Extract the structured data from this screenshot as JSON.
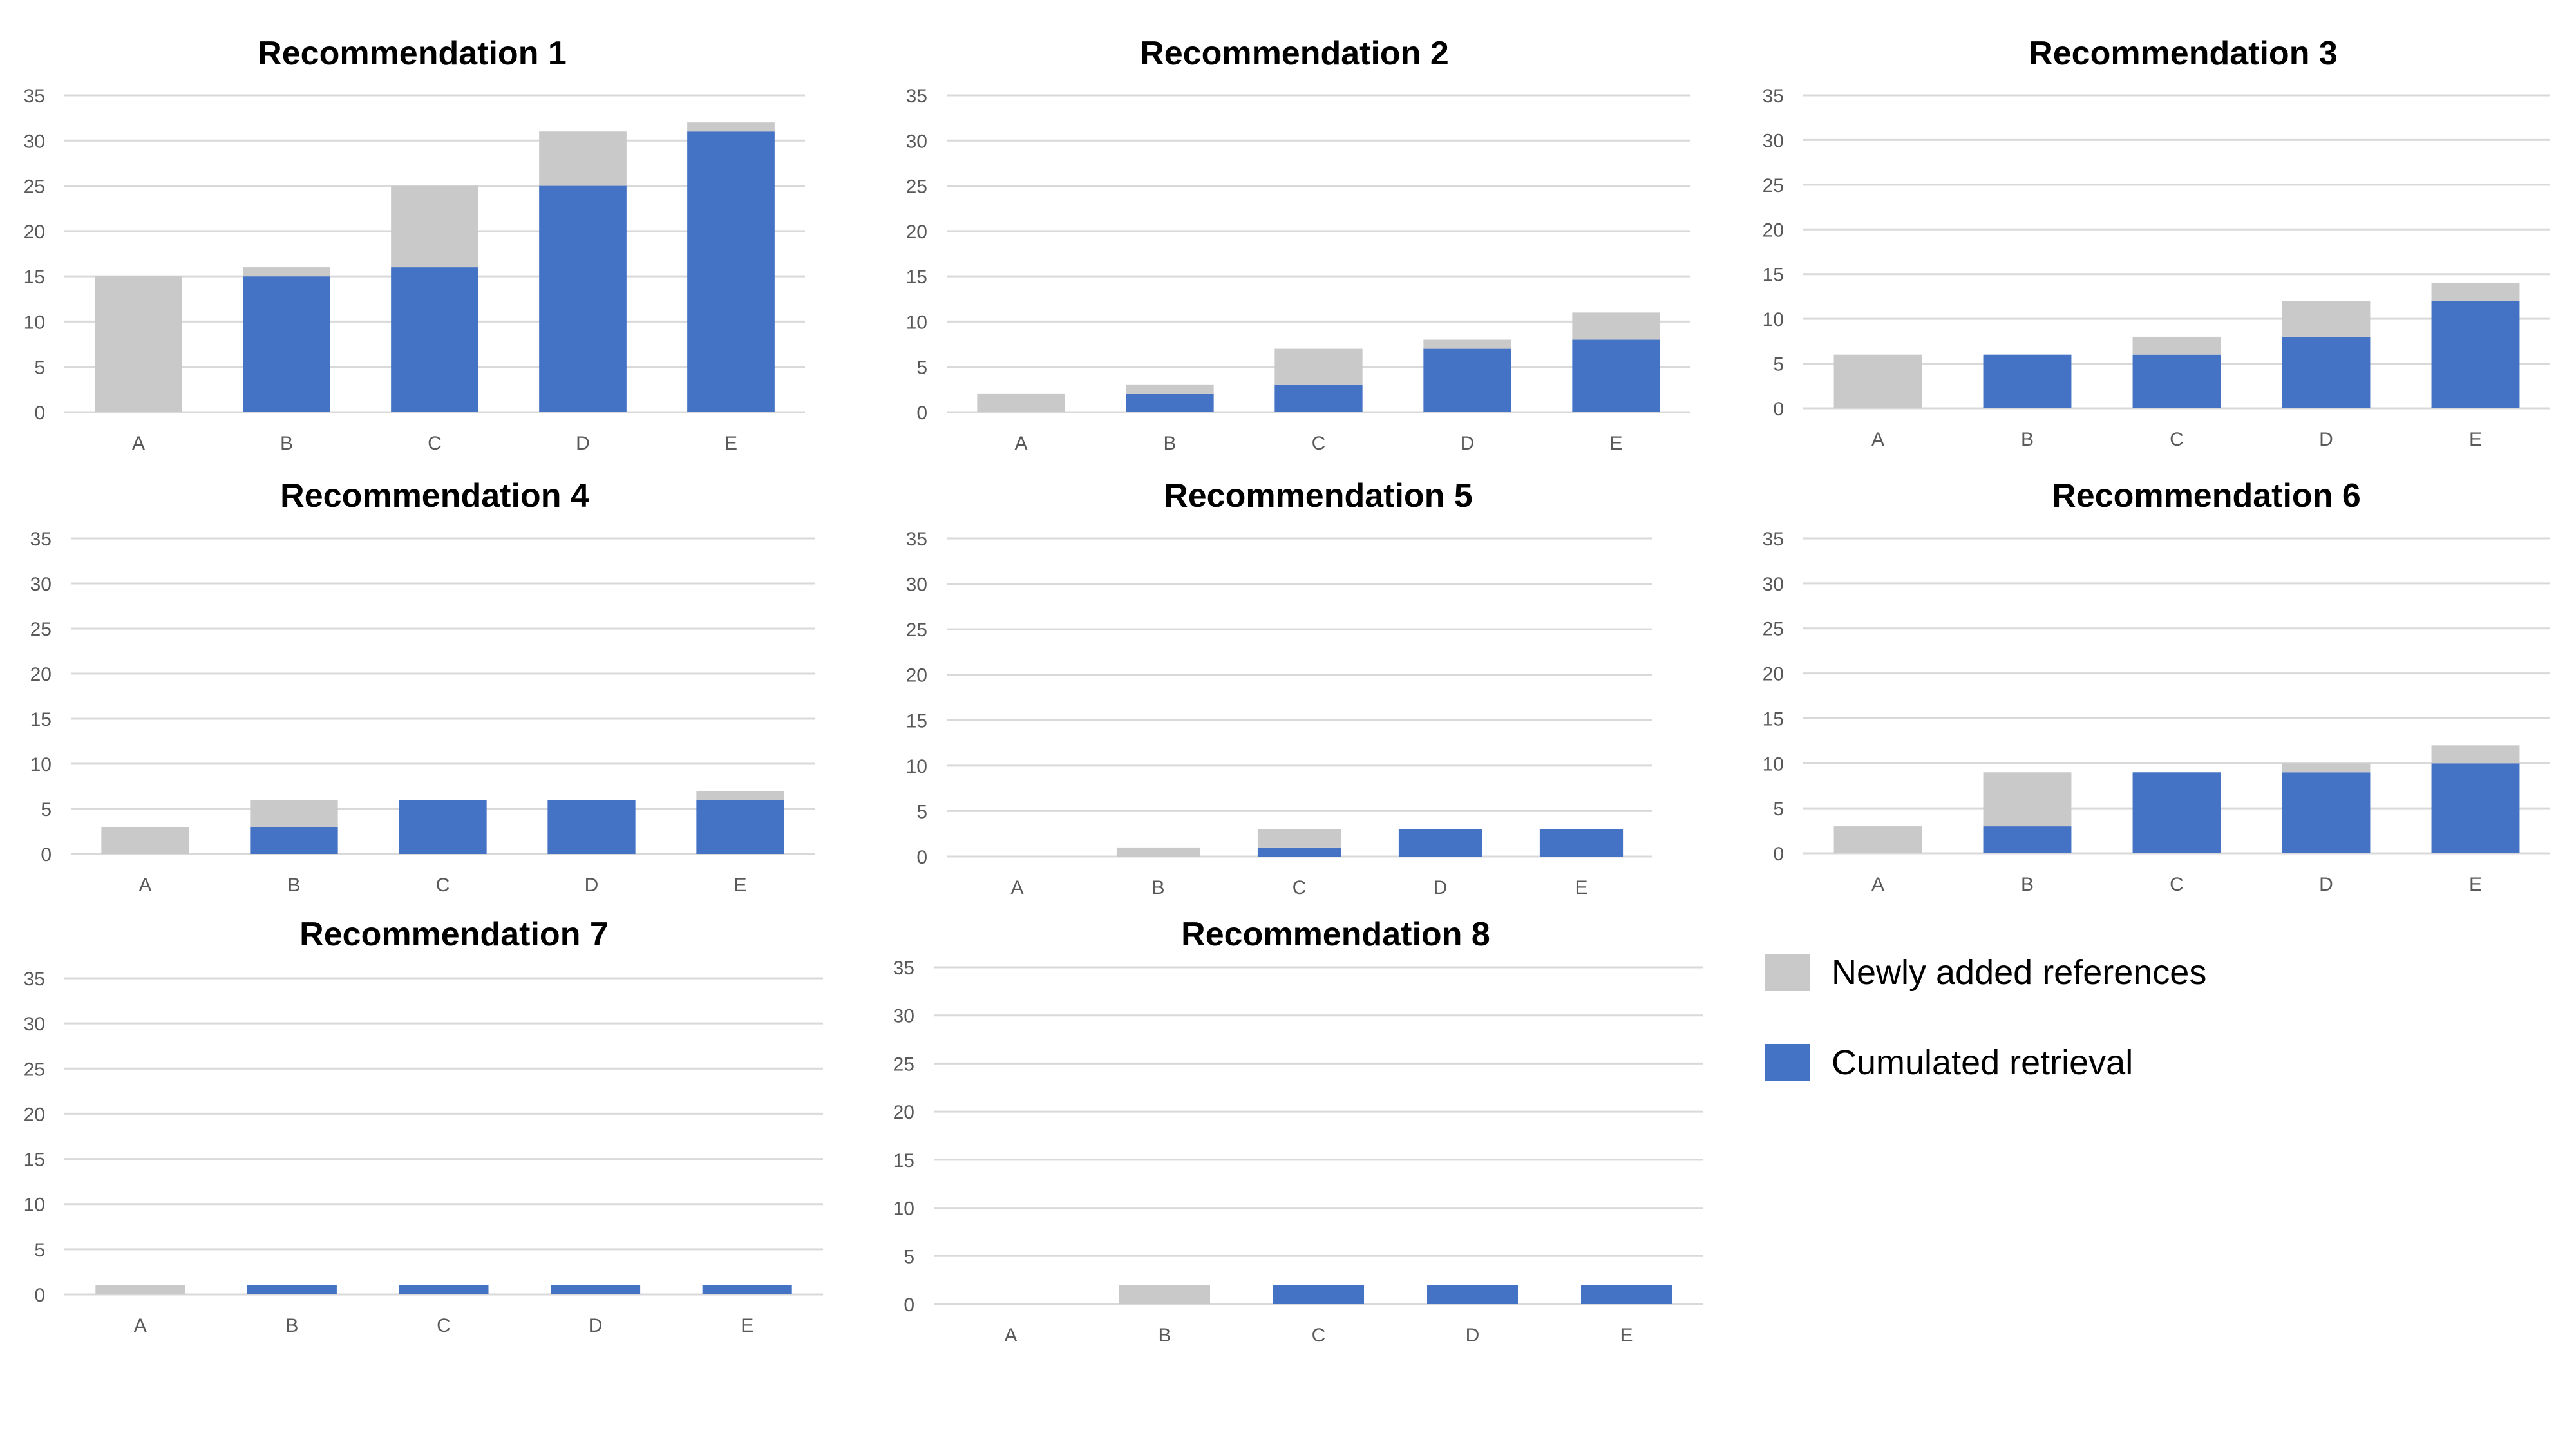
{
  "colors": {
    "newly_added": "#c9c9c9",
    "cumulated": "#4472c4"
  },
  "legend": {
    "position": "bottom-right",
    "items": [
      {
        "key": "newly_added",
        "label": "Newly added references"
      },
      {
        "key": "cumulated",
        "label": "Cumulated retrieval"
      }
    ]
  },
  "chart_data": [
    {
      "type": "bar",
      "stacked": true,
      "title": "Recommendation 1",
      "categories": [
        "A",
        "B",
        "C",
        "D",
        "E"
      ],
      "yticks": [
        0,
        5,
        10,
        15,
        20,
        25,
        30,
        35
      ],
      "ylim": [
        0,
        35
      ],
      "grid": true,
      "series": [
        {
          "name": "Cumulated retrieval",
          "values": [
            0,
            15,
            16,
            25,
            31
          ]
        },
        {
          "name": "Newly added references",
          "values": [
            15,
            1,
            9,
            6,
            1
          ]
        }
      ]
    },
    {
      "type": "bar",
      "stacked": true,
      "title": "Recommendation 2",
      "categories": [
        "A",
        "B",
        "C",
        "D",
        "E"
      ],
      "yticks": [
        0,
        5,
        10,
        15,
        20,
        25,
        30,
        35
      ],
      "ylim": [
        0,
        35
      ],
      "grid": true,
      "series": [
        {
          "name": "Cumulated retrieval",
          "values": [
            0,
            2,
            3,
            7,
            8
          ]
        },
        {
          "name": "Newly added references",
          "values": [
            2,
            1,
            4,
            1,
            3
          ]
        }
      ]
    },
    {
      "type": "bar",
      "stacked": true,
      "title": "Recommendation 3",
      "categories": [
        "A",
        "B",
        "C",
        "D",
        "E"
      ],
      "yticks": [
        0,
        5,
        10,
        15,
        20,
        25,
        30,
        35
      ],
      "ylim": [
        0,
        35
      ],
      "grid": true,
      "series": [
        {
          "name": "Cumulated retrieval",
          "values": [
            0,
            6,
            6,
            8,
            12
          ]
        },
        {
          "name": "Newly added references",
          "values": [
            6,
            0,
            2,
            4,
            2
          ]
        }
      ]
    },
    {
      "type": "bar",
      "stacked": true,
      "title": "Recommendation 4",
      "categories": [
        "A",
        "B",
        "C",
        "D",
        "E"
      ],
      "yticks": [
        0,
        5,
        10,
        15,
        20,
        25,
        30,
        35
      ],
      "ylim": [
        0,
        35
      ],
      "grid": true,
      "series": [
        {
          "name": "Cumulated retrieval",
          "values": [
            0,
            3,
            6,
            6,
            6
          ]
        },
        {
          "name": "Newly added references",
          "values": [
            3,
            3,
            0,
            0,
            1
          ]
        }
      ]
    },
    {
      "type": "bar",
      "stacked": true,
      "title": "Recommendation 5",
      "categories": [
        "A",
        "B",
        "C",
        "D",
        "E"
      ],
      "yticks": [
        0,
        5,
        10,
        15,
        20,
        25,
        30,
        35
      ],
      "ylim": [
        0,
        35
      ],
      "grid": true,
      "series": [
        {
          "name": "Cumulated retrieval",
          "values": [
            0,
            0,
            1,
            3,
            3
          ]
        },
        {
          "name": "Newly added references",
          "values": [
            0,
            1,
            2,
            0,
            0
          ]
        }
      ]
    },
    {
      "type": "bar",
      "stacked": true,
      "title": "Recommendation 6",
      "categories": [
        "A",
        "B",
        "C",
        "D",
        "E"
      ],
      "yticks": [
        0,
        5,
        10,
        15,
        20,
        25,
        30,
        35
      ],
      "ylim": [
        0,
        35
      ],
      "grid": true,
      "series": [
        {
          "name": "Cumulated retrieval",
          "values": [
            0,
            3,
            9,
            9,
            10
          ]
        },
        {
          "name": "Newly added references",
          "values": [
            3,
            6,
            0,
            1,
            2
          ]
        }
      ]
    },
    {
      "type": "bar",
      "stacked": true,
      "title": "Recommendation 7",
      "categories": [
        "A",
        "B",
        "C",
        "D",
        "E"
      ],
      "yticks": [
        0,
        5,
        10,
        15,
        20,
        25,
        30,
        35
      ],
      "ylim": [
        0,
        35
      ],
      "grid": true,
      "series": [
        {
          "name": "Cumulated retrieval",
          "values": [
            0,
            1,
            1,
            1,
            1
          ]
        },
        {
          "name": "Newly added references",
          "values": [
            1,
            0,
            0,
            0,
            0
          ]
        }
      ]
    },
    {
      "type": "bar",
      "stacked": true,
      "title": "Recommendation 8",
      "categories": [
        "A",
        "B",
        "C",
        "D",
        "E"
      ],
      "yticks": [
        0,
        5,
        10,
        15,
        20,
        25,
        30,
        35
      ],
      "ylim": [
        0,
        35
      ],
      "grid": true,
      "series": [
        {
          "name": "Cumulated retrieval",
          "values": [
            0,
            0,
            2,
            2,
            2
          ]
        },
        {
          "name": "Newly added references",
          "values": [
            0,
            2,
            0,
            0,
            0
          ]
        }
      ]
    }
  ]
}
